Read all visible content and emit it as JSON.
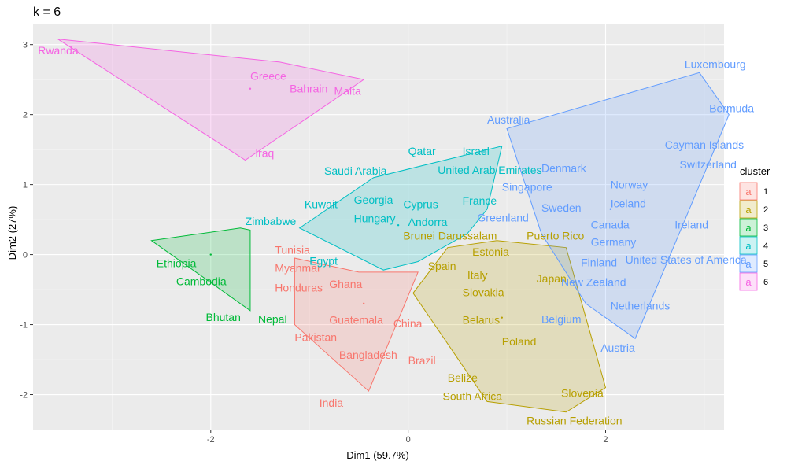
{
  "chart_data": {
    "type": "scatter",
    "title": "k = 6",
    "xlabel": "Dim1 (59.7%)",
    "ylabel": "Dim2 (27%)",
    "xlim": [
      -3.8,
      3.2
    ],
    "ylim": [
      -2.5,
      3.3
    ],
    "xticks": [
      -2,
      0,
      2
    ],
    "yticks": [
      -2,
      -1,
      0,
      1,
      2,
      3
    ],
    "grid": true,
    "legend": {
      "title": "cluster",
      "position": "right",
      "key_glyph": "a"
    },
    "series": [
      {
        "name": "1",
        "color": "#F8766D",
        "hull": [
          [
            -1.15,
            -0.05
          ],
          [
            -0.5,
            -0.25
          ],
          [
            0.1,
            -0.25
          ],
          [
            -0.4,
            -1.95
          ],
          [
            -1.15,
            -1.0
          ]
        ],
        "centroid": [
          -0.45,
          -0.7
        ],
        "points": [
          {
            "label": "Tunisia",
            "x": -1.35,
            "y": 0.07
          },
          {
            "label": "Myanmar",
            "x": -1.35,
            "y": -0.19
          },
          {
            "label": "Honduras",
            "x": -1.35,
            "y": -0.47
          },
          {
            "label": "Ghana",
            "x": -0.8,
            "y": -0.42
          },
          {
            "label": "Guatemala",
            "x": -0.8,
            "y": -0.93
          },
          {
            "label": "China",
            "x": -0.15,
            "y": -0.98
          },
          {
            "label": "Pakistan",
            "x": -1.15,
            "y": -1.18
          },
          {
            "label": "Bangladesh",
            "x": -0.7,
            "y": -1.43
          },
          {
            "label": "Brazil",
            "x": 0.0,
            "y": -1.51
          },
          {
            "label": "India",
            "x": -0.9,
            "y": -2.12
          }
        ]
      },
      {
        "name": "2",
        "color": "#B79F00",
        "hull": [
          [
            0.4,
            0.1
          ],
          [
            0.9,
            0.2
          ],
          [
            1.6,
            0.1
          ],
          [
            2.0,
            -1.9
          ],
          [
            1.6,
            -2.25
          ],
          [
            0.8,
            -2.1
          ],
          [
            0.05,
            -0.55
          ]
        ],
        "centroid": [
          0.95,
          -0.9
        ],
        "points": [
          {
            "label": "Brunei Darussalam",
            "x": -0.05,
            "y": 0.27
          },
          {
            "label": "Puerto Rico",
            "x": 1.2,
            "y": 0.27
          },
          {
            "label": "Estonia",
            "x": 0.65,
            "y": 0.04
          },
          {
            "label": "Spain",
            "x": 0.2,
            "y": -0.16
          },
          {
            "label": "Italy",
            "x": 0.6,
            "y": -0.29
          },
          {
            "label": "Japan",
            "x": 1.3,
            "y": -0.34
          },
          {
            "label": "Slovakia",
            "x": 0.55,
            "y": -0.54
          },
          {
            "label": "Belarus",
            "x": 0.55,
            "y": -0.93
          },
          {
            "label": "Poland",
            "x": 0.95,
            "y": -1.24
          },
          {
            "label": "Belize",
            "x": 0.4,
            "y": -1.76
          },
          {
            "label": "South Africa",
            "x": 0.35,
            "y": -2.02
          },
          {
            "label": "Slovenia",
            "x": 1.55,
            "y": -1.98
          },
          {
            "label": "Russian Federation",
            "x": 1.2,
            "y": -2.37
          }
        ]
      },
      {
        "name": "3",
        "color": "#00BA38",
        "hull": [
          [
            -2.6,
            0.2
          ],
          [
            -1.7,
            0.38
          ],
          [
            -1.6,
            0.35
          ],
          [
            -1.6,
            -0.8
          ]
        ],
        "centroid": [
          -2.0,
          0.0
        ],
        "points": [
          {
            "label": "Ethiopia",
            "x": -2.55,
            "y": -0.12
          },
          {
            "label": "Cambodia",
            "x": -2.35,
            "y": -0.38
          },
          {
            "label": "Bhutan",
            "x": -2.05,
            "y": -0.89
          },
          {
            "label": "Nepal",
            "x": -1.52,
            "y": -0.92
          }
        ]
      },
      {
        "name": "4",
        "color": "#00BFC4",
        "hull": [
          [
            -1.1,
            0.38
          ],
          [
            -0.35,
            1.1
          ],
          [
            0.95,
            1.55
          ],
          [
            0.8,
            0.65
          ],
          [
            0.6,
            0.3
          ],
          [
            0.1,
            -0.1
          ],
          [
            -0.25,
            -0.22
          ]
        ],
        "centroid": [
          -0.1,
          0.42
        ],
        "points": [
          {
            "label": "Zimbabwe",
            "x": -1.65,
            "y": 0.48
          },
          {
            "label": "Egypt",
            "x": -1.0,
            "y": -0.09
          },
          {
            "label": "Saudi Arabia",
            "x": -0.85,
            "y": 1.2
          },
          {
            "label": "Qatar",
            "x": 0.0,
            "y": 1.48
          },
          {
            "label": "Israel",
            "x": 0.55,
            "y": 1.48
          },
          {
            "label": "United Arab Emirates",
            "x": 0.3,
            "y": 1.21
          },
          {
            "label": "Georgia",
            "x": -0.55,
            "y": 0.78
          },
          {
            "label": "Kuwait",
            "x": -1.05,
            "y": 0.72
          },
          {
            "label": "Cyprus",
            "x": -0.05,
            "y": 0.72
          },
          {
            "label": "France",
            "x": 0.55,
            "y": 0.77
          },
          {
            "label": "Hungary",
            "x": -0.55,
            "y": 0.52
          },
          {
            "label": "Andorra",
            "x": 0.0,
            "y": 0.47
          }
        ]
      },
      {
        "name": "5",
        "color": "#619CFF",
        "hull": [
          [
            1.0,
            1.8
          ],
          [
            2.95,
            2.6
          ],
          [
            3.25,
            2.0
          ],
          [
            2.3,
            -1.2
          ],
          [
            1.8,
            -0.7
          ],
          [
            1.35,
            0.3
          ]
        ],
        "centroid": [
          2.05,
          0.65
        ],
        "points": [
          {
            "label": "Luxembourg",
            "x": 2.8,
            "y": 2.72
          },
          {
            "label": "Bermuda",
            "x": 3.05,
            "y": 2.09
          },
          {
            "label": "Australia",
            "x": 0.8,
            "y": 1.93
          },
          {
            "label": "Cayman Islands",
            "x": 2.6,
            "y": 1.57
          },
          {
            "label": "Switzerland",
            "x": 2.75,
            "y": 1.29
          },
          {
            "label": "Denmark",
            "x": 1.35,
            "y": 1.24
          },
          {
            "label": "Singapore",
            "x": 0.95,
            "y": 0.97
          },
          {
            "label": "Norway",
            "x": 2.05,
            "y": 1.0
          },
          {
            "label": "Iceland",
            "x": 2.05,
            "y": 0.73
          },
          {
            "label": "Sweden",
            "x": 1.35,
            "y": 0.67
          },
          {
            "label": "Greenland",
            "x": 0.7,
            "y": 0.53
          },
          {
            "label": "Canada",
            "x": 1.85,
            "y": 0.43
          },
          {
            "label": "Ireland",
            "x": 2.7,
            "y": 0.43
          },
          {
            "label": "Germany",
            "x": 1.85,
            "y": 0.18
          },
          {
            "label": "Finland",
            "x": 1.75,
            "y": -0.11
          },
          {
            "label": "United States of America",
            "x": 2.2,
            "y": -0.07
          },
          {
            "label": "New Zealand",
            "x": 1.55,
            "y": -0.39
          },
          {
            "label": "Netherlands",
            "x": 2.05,
            "y": -0.73
          },
          {
            "label": "Belgium",
            "x": 1.35,
            "y": -0.92
          },
          {
            "label": "Austria",
            "x": 1.95,
            "y": -1.33
          }
        ]
      },
      {
        "name": "6",
        "color": "#F564E3",
        "hull": [
          [
            -3.55,
            3.08
          ],
          [
            -1.3,
            2.75
          ],
          [
            -0.45,
            2.5
          ],
          [
            -1.65,
            1.35
          ]
        ],
        "centroid": [
          -1.6,
          2.37
        ],
        "points": [
          {
            "label": "Rwanda",
            "x": -3.75,
            "y": 2.92
          },
          {
            "label": "Greece",
            "x": -1.6,
            "y": 2.55
          },
          {
            "label": "Bahrain",
            "x": -1.2,
            "y": 2.37
          },
          {
            "label": "Malta",
            "x": -0.75,
            "y": 2.34
          },
          {
            "label": "Iraq",
            "x": -1.55,
            "y": 1.45
          }
        ]
      }
    ]
  }
}
